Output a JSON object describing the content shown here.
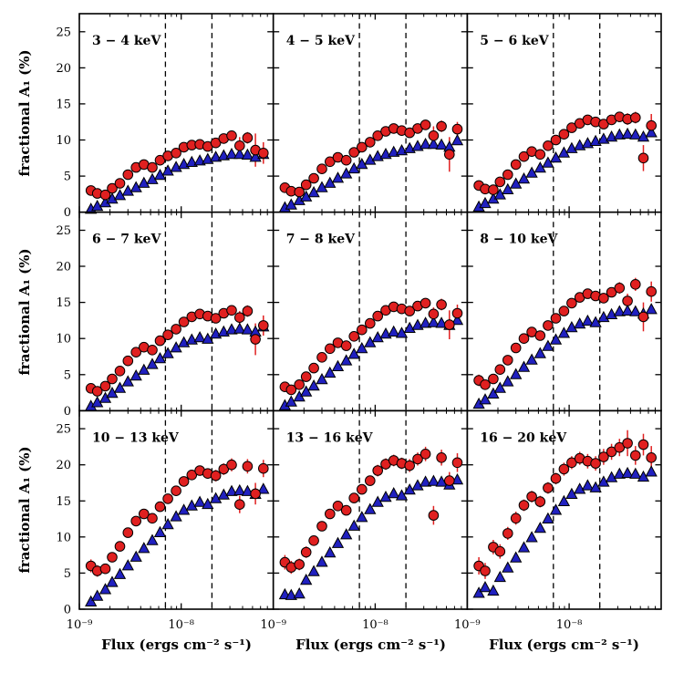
{
  "figure": {
    "background": "#ffffff",
    "ylabel": "fractional A₁ (%)",
    "xlabel": "Flux (ergs cm⁻² s⁻¹)"
  },
  "chart_data": {
    "type": "scatter",
    "grid_layout": "3 rows x 3 columns, shared log-x and linear-y axes",
    "xlabel": "Flux (ergs cm⁻² s⁻¹)",
    "ylabel": "fractional A₁ (%)",
    "x_scale": "log",
    "x_range": [
      1e-09,
      8e-08
    ],
    "y_range": [
      0,
      27.5
    ],
    "x_major_ticks": [
      1e-09,
      1e-08
    ],
    "x_tick_labels": [
      "10⁻⁹",
      "10⁻⁸"
    ],
    "y_major_ticks": [
      0,
      5,
      10,
      15,
      20,
      25
    ],
    "y_tick_labels": [
      "0",
      "5",
      "10",
      "15",
      "20",
      "25"
    ],
    "dashed_lines_x": [
      7e-09,
      2e-08
    ],
    "style": {
      "red": "#e02020",
      "blue": "#2020c0",
      "marker_edge": "#000000",
      "dashed_line": "#000000"
    },
    "series_legend": [
      {
        "name": "red-circles",
        "marker": "circle",
        "color": "#e02020",
        "has_error_bars": true
      },
      {
        "name": "blue-triangles",
        "marker": "triangle-up",
        "color": "#2020c0",
        "has_error_bars": false
      }
    ],
    "x_values": [
      1.3e-09,
      1.5e-09,
      1.8e-09,
      2.1e-09,
      2.5e-09,
      3e-09,
      3.6e-09,
      4.3e-09,
      5.2e-09,
      6.2e-09,
      7.4e-09,
      8.9e-09,
      1.06e-08,
      1.27e-08,
      1.52e-08,
      1.82e-08,
      2.18e-08,
      2.61e-08,
      3.12e-08,
      3.74e-08,
      4.47e-08,
      5.35e-08,
      6.4e-08
    ],
    "panels": [
      {
        "label": "3 − 4 keV",
        "red_y": [
          3.0,
          2.6,
          2.4,
          3.3,
          4.0,
          5.2,
          6.2,
          6.6,
          6.2,
          7.2,
          7.8,
          8.2,
          9.0,
          9.3,
          9.4,
          9.1,
          9.6,
          10.2,
          10.6,
          9.2,
          10.3,
          8.6,
          8.2
        ],
        "red_err": [
          0.7,
          0.6,
          0.5,
          0.5,
          0.5,
          0.5,
          0.5,
          0.5,
          0.5,
          0.5,
          0.5,
          0.5,
          0.5,
          0.5,
          0.5,
          0.5,
          0.6,
          0.6,
          0.7,
          1.2,
          0.8,
          2.3,
          1.5
        ],
        "blue_y": [
          0.4,
          0.8,
          1.3,
          1.8,
          2.3,
          2.9,
          3.4,
          4.0,
          4.5,
          5.1,
          5.7,
          6.2,
          6.6,
          6.9,
          7.1,
          7.3,
          7.6,
          7.8,
          8.0,
          8.0,
          7.9,
          7.6,
          8.0
        ]
      },
      {
        "label": "4 − 5 keV",
        "red_y": [
          3.4,
          2.9,
          2.8,
          3.8,
          4.7,
          6.0,
          7.0,
          7.6,
          7.2,
          8.3,
          9.0,
          9.7,
          10.6,
          11.2,
          11.6,
          11.3,
          11.0,
          11.6,
          12.1,
          10.6,
          11.9,
          8.0,
          11.5
        ],
        "red_err": [
          0.7,
          0.6,
          0.5,
          0.5,
          0.5,
          0.5,
          0.5,
          0.5,
          0.5,
          0.5,
          0.5,
          0.5,
          0.5,
          0.5,
          0.5,
          0.5,
          0.6,
          0.6,
          0.7,
          1.3,
          0.8,
          2.4,
          1.0
        ],
        "blue_y": [
          0.6,
          1.0,
          1.6,
          2.1,
          2.7,
          3.4,
          4.0,
          4.7,
          5.3,
          6.0,
          6.6,
          7.2,
          7.7,
          8.0,
          8.3,
          8.5,
          8.8,
          9.1,
          9.4,
          9.4,
          9.3,
          9.0,
          9.9
        ]
      },
      {
        "label": "5 − 6 keV",
        "red_y": [
          3.7,
          3.2,
          3.1,
          4.2,
          5.2,
          6.6,
          7.7,
          8.4,
          8.0,
          9.2,
          10.0,
          10.8,
          11.7,
          12.3,
          12.8,
          12.5,
          12.2,
          12.8,
          13.2,
          12.9,
          13.1,
          7.5,
          12.0
        ],
        "red_err": [
          0.7,
          0.6,
          0.5,
          0.5,
          0.5,
          0.5,
          0.5,
          0.5,
          0.5,
          0.5,
          0.5,
          0.5,
          0.5,
          0.5,
          0.5,
          0.5,
          0.6,
          0.6,
          0.7,
          0.8,
          0.8,
          1.8,
          1.6
        ],
        "blue_y": [
          0.7,
          1.2,
          1.8,
          2.4,
          3.1,
          3.9,
          4.6,
          5.4,
          6.1,
          6.8,
          7.5,
          8.2,
          8.8,
          9.2,
          9.5,
          9.8,
          10.1,
          10.4,
          10.7,
          10.8,
          10.7,
          10.4,
          11.0
        ]
      },
      {
        "label": "6 − 7 keV",
        "red_y": [
          3.1,
          2.7,
          3.4,
          4.4,
          5.5,
          6.9,
          8.1,
          8.8,
          8.4,
          9.7,
          10.5,
          11.3,
          12.3,
          13.0,
          13.4,
          13.1,
          12.8,
          13.5,
          13.9,
          12.9,
          13.8,
          9.9,
          11.8
        ],
        "red_err": [
          0.7,
          0.6,
          0.5,
          0.5,
          0.5,
          0.5,
          0.5,
          0.5,
          0.5,
          0.5,
          0.5,
          0.5,
          0.5,
          0.5,
          0.5,
          0.5,
          0.6,
          0.6,
          0.7,
          0.9,
          0.8,
          2.2,
          1.4
        ],
        "blue_y": [
          0.6,
          1.1,
          1.7,
          2.4,
          3.1,
          4.0,
          4.8,
          5.6,
          6.4,
          7.2,
          7.9,
          8.7,
          9.4,
          9.8,
          10.1,
          9.9,
          10.6,
          10.9,
          11.2,
          11.3,
          11.2,
          10.9,
          11.6
        ]
      },
      {
        "label": "7 − 8 keV",
        "red_y": [
          3.3,
          2.9,
          3.6,
          4.7,
          5.9,
          7.4,
          8.6,
          9.4,
          9.0,
          10.3,
          11.2,
          12.1,
          13.1,
          13.9,
          14.4,
          14.1,
          13.8,
          14.5,
          14.9,
          13.4,
          14.7,
          11.9,
          13.5
        ],
        "red_err": [
          0.7,
          0.6,
          0.6,
          0.5,
          0.5,
          0.5,
          0.5,
          0.5,
          0.5,
          0.5,
          0.5,
          0.5,
          0.5,
          0.5,
          0.5,
          0.6,
          0.6,
          0.6,
          0.7,
          0.9,
          0.8,
          2.0,
          1.2
        ],
        "blue_y": [
          0.7,
          1.2,
          1.9,
          2.6,
          3.4,
          4.3,
          5.2,
          6.1,
          6.9,
          7.8,
          8.6,
          9.4,
          10.1,
          10.6,
          10.9,
          10.7,
          11.4,
          11.8,
          12.1,
          12.2,
          12.1,
          11.8,
          12.5
        ]
      },
      {
        "label": "8 − 10 keV",
        "red_y": [
          4.2,
          3.6,
          4.4,
          5.7,
          7.0,
          8.7,
          10.0,
          10.9,
          10.4,
          11.8,
          12.8,
          13.8,
          14.9,
          15.7,
          16.2,
          15.9,
          15.6,
          16.4,
          17.0,
          15.2,
          17.5,
          13.0,
          16.5
        ],
        "red_err": [
          0.8,
          0.7,
          0.6,
          0.6,
          0.6,
          0.6,
          0.5,
          0.5,
          0.5,
          0.5,
          0.5,
          0.6,
          0.6,
          0.6,
          0.6,
          0.6,
          0.7,
          0.7,
          0.8,
          1.0,
          0.9,
          2.0,
          1.4
        ],
        "blue_y": [
          0.9,
          1.5,
          2.3,
          3.1,
          4.0,
          5.0,
          6.0,
          7.0,
          7.9,
          8.9,
          9.8,
          10.7,
          11.5,
          12.0,
          12.4,
          12.2,
          12.9,
          13.3,
          13.7,
          13.8,
          13.7,
          13.4,
          14.0
        ]
      },
      {
        "label": "10 − 13 keV",
        "red_y": [
          6.0,
          5.3,
          5.6,
          7.2,
          8.7,
          10.6,
          12.2,
          13.2,
          12.6,
          14.2,
          15.3,
          16.4,
          17.7,
          18.6,
          19.2,
          18.8,
          18.5,
          19.4,
          20.0,
          14.5,
          19.8,
          16.0,
          19.5
        ],
        "red_err": [
          0.9,
          0.8,
          0.7,
          0.7,
          0.6,
          0.6,
          0.6,
          0.6,
          0.6,
          0.6,
          0.6,
          0.6,
          0.7,
          0.7,
          0.7,
          0.7,
          0.8,
          0.8,
          0.9,
          1.2,
          1.0,
          1.5,
          1.2
        ],
        "blue_y": [
          1.0,
          1.8,
          2.7,
          3.7,
          4.8,
          6.0,
          7.2,
          8.4,
          9.5,
          10.6,
          11.7,
          12.8,
          13.7,
          14.3,
          14.8,
          14.5,
          15.3,
          15.8,
          16.3,
          16.4,
          16.3,
          15.9,
          16.6
        ]
      },
      {
        "label": "13 − 16 keV",
        "red_y": [
          6.5,
          5.8,
          6.2,
          7.9,
          9.5,
          11.5,
          13.2,
          14.3,
          13.7,
          15.4,
          16.6,
          17.8,
          19.2,
          20.1,
          20.6,
          20.2,
          19.9,
          20.8,
          21.5,
          13.0,
          21.0,
          17.8,
          20.3
        ],
        "red_err": [
          1.0,
          0.9,
          0.8,
          0.8,
          0.7,
          0.7,
          0.7,
          0.7,
          0.7,
          0.7,
          0.7,
          0.7,
          0.8,
          0.8,
          0.8,
          0.8,
          0.9,
          0.9,
          1.0,
          1.3,
          1.1,
          1.2,
          1.3
        ],
        "blue_y": [
          2.0,
          1.9,
          2.1,
          4.0,
          5.2,
          6.5,
          7.8,
          9.1,
          10.3,
          11.5,
          12.7,
          13.8,
          14.8,
          15.5,
          16.0,
          15.7,
          16.5,
          17.1,
          17.6,
          17.7,
          17.6,
          17.2,
          17.9
        ]
      },
      {
        "label": "16 − 20 keV",
        "red_y": [
          6.0,
          5.3,
          8.6,
          8.0,
          10.5,
          12.6,
          14.4,
          15.6,
          14.9,
          16.8,
          18.1,
          19.4,
          20.3,
          20.9,
          20.5,
          20.2,
          21.1,
          21.8,
          22.4,
          23.0,
          21.3,
          22.8,
          21.0
        ],
        "red_err": [
          1.2,
          1.1,
          1.0,
          1.0,
          0.9,
          0.9,
          0.8,
          0.8,
          0.8,
          0.8,
          0.8,
          0.9,
          0.9,
          0.9,
          1.0,
          1.0,
          1.1,
          1.1,
          1.2,
          1.8,
          1.3,
          1.5,
          1.6
        ],
        "blue_y": [
          2.2,
          3.0,
          2.5,
          4.4,
          5.7,
          7.1,
          8.5,
          9.9,
          11.2,
          12.5,
          13.7,
          14.9,
          15.9,
          16.6,
          17.1,
          16.8,
          17.6,
          18.2,
          18.7,
          18.8,
          18.7,
          18.3,
          19.0
        ]
      }
    ]
  }
}
